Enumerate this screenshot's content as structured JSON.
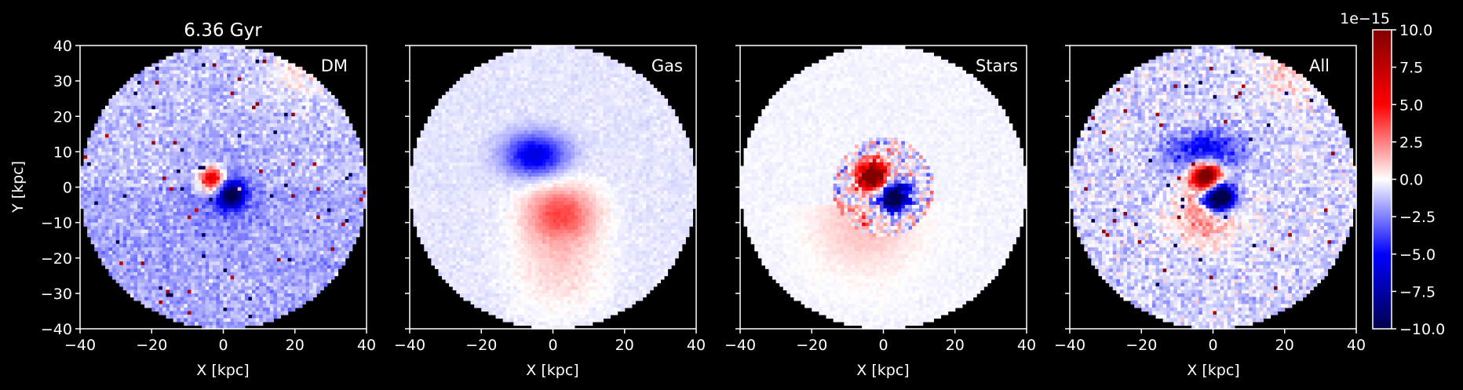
{
  "chart_data": {
    "type": "heatmap",
    "title": "6.36 Gyr",
    "xlabel": "X [kpc]",
    "ylabel": "Y [kpc]",
    "xlim": [
      -40,
      40
    ],
    "ylim": [
      -40,
      40
    ],
    "xticks": [
      "−40",
      "−20",
      "0",
      "20",
      "40"
    ],
    "yticks": [
      "40",
      "30",
      "20",
      "10",
      "0",
      "−10",
      "−20",
      "−30",
      "−40"
    ],
    "panels": [
      {
        "name": "DM"
      },
      {
        "name": "Gas"
      },
      {
        "name": "Stars"
      },
      {
        "name": "All"
      }
    ],
    "colorbar": {
      "colormap": "seismic",
      "range": [
        -10.0,
        10.0
      ],
      "scale_label": "1e−15",
      "ticks": [
        "10.0",
        "7.5",
        "5.0",
        "2.5",
        "0.0",
        "−2.5",
        "−5.0",
        "−7.5",
        "−10.0"
      ],
      "colors": [
        "#00004d",
        "#0000ff",
        "#ffffff",
        "#ff0000",
        "#800000"
      ]
    },
    "grid": false
  }
}
